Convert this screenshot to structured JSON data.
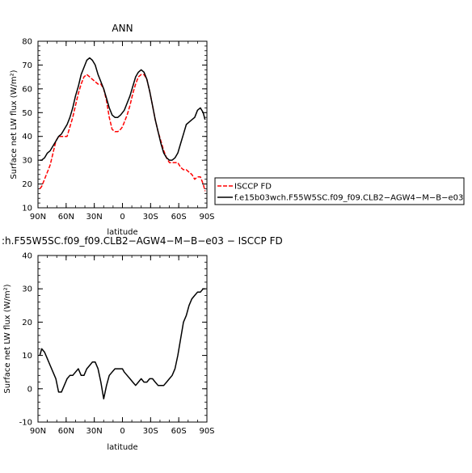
{
  "chart_data": [
    {
      "type": "line",
      "title": "ANN",
      "xlabel": "latitude",
      "ylabel": "Surface net LW flux (W/m²)",
      "xlim": [
        90,
        -90
      ],
      "ylim": [
        10,
        80
      ],
      "x_ticks": [
        90,
        60,
        30,
        0,
        -30,
        -60,
        -90
      ],
      "x_tick_labels": [
        "90N",
        "60N",
        "30N",
        "0",
        "30S",
        "60S",
        "90S"
      ],
      "y_ticks": [
        10,
        20,
        30,
        40,
        50,
        60,
        70,
        80
      ],
      "legend_position": "right",
      "series": [
        {
          "name": "ISCCP FD",
          "color": "#ff0000",
          "dashed": true,
          "x": [
            88,
            86,
            83,
            80,
            77,
            74,
            71,
            68,
            65,
            62,
            59,
            56,
            53,
            50,
            47,
            44,
            41,
            38,
            35,
            32,
            29,
            26,
            23,
            20,
            17,
            14,
            11,
            8,
            5,
            2,
            0,
            -2,
            -5,
            -8,
            -11,
            -14,
            -17,
            -20,
            -23,
            -26,
            -29,
            -32,
            -35,
            -38,
            -41,
            -44,
            -47,
            -50,
            -53,
            -56,
            -59,
            -62,
            -65,
            -68,
            -71,
            -74,
            -77,
            -80,
            -83,
            -86,
            -88
          ],
          "y": [
            18,
            19,
            22,
            25,
            28,
            33,
            38,
            40,
            40,
            40,
            40,
            44,
            48,
            53,
            58,
            62,
            65,
            66,
            65,
            64,
            63,
            62,
            62,
            60,
            55,
            48,
            43,
            42,
            42,
            43,
            44,
            46,
            49,
            53,
            58,
            62,
            65,
            66,
            66,
            64,
            59,
            53,
            47,
            42,
            38,
            34,
            31,
            29,
            29,
            29,
            29,
            27,
            26,
            26,
            25,
            24,
            22,
            23,
            23,
            20,
            17
          ]
        },
        {
          "name": "f.e15b03wch.F55W5SC.f09_f09.CLB2−AGW4−M−B−e03",
          "color": "#000000",
          "dashed": false,
          "x": [
            88,
            86,
            83,
            80,
            77,
            74,
            71,
            68,
            65,
            62,
            59,
            56,
            53,
            50,
            47,
            44,
            41,
            38,
            35,
            32,
            29,
            26,
            23,
            20,
            17,
            14,
            11,
            8,
            5,
            2,
            0,
            -2,
            -5,
            -8,
            -11,
            -14,
            -17,
            -20,
            -23,
            -26,
            -29,
            -32,
            -35,
            -38,
            -41,
            -44,
            -47,
            -50,
            -53,
            -56,
            -59,
            -62,
            -65,
            -68,
            -71,
            -74,
            -77,
            -80,
            -83,
            -86,
            -88
          ],
          "y": [
            30,
            30,
            31,
            33,
            34,
            36,
            38,
            40,
            41,
            43,
            45,
            48,
            52,
            57,
            61,
            66,
            69,
            72,
            73,
            72,
            70,
            66,
            63,
            60,
            56,
            52,
            49,
            48,
            48,
            49,
            50,
            51,
            54,
            57,
            61,
            65,
            67,
            68,
            67,
            64,
            59,
            53,
            47,
            42,
            37,
            33,
            31,
            30,
            30,
            31,
            33,
            37,
            41,
            45,
            46,
            47,
            48,
            51,
            52,
            50,
            47
          ]
        }
      ]
    },
    {
      "type": "line",
      "title": ":h.F55W5SC.f09_f09.CLB2−AGW4−M−B−e03 − ISCCP FD",
      "xlabel": "latitude",
      "ylabel": "Surface net LW flux (W/m²)",
      "xlim": [
        90,
        -90
      ],
      "ylim": [
        -10,
        40
      ],
      "x_ticks": [
        90,
        60,
        30,
        0,
        -30,
        -60,
        -90
      ],
      "x_tick_labels": [
        "90N",
        "60N",
        "30N",
        "0",
        "30S",
        "60S",
        "90S"
      ],
      "y_ticks": [
        -10,
        0,
        10,
        20,
        30,
        40
      ],
      "series": [
        {
          "color": "#000000",
          "dashed": false,
          "x": [
            88,
            86,
            83,
            80,
            77,
            74,
            71,
            68,
            65,
            62,
            59,
            56,
            53,
            50,
            47,
            44,
            41,
            38,
            35,
            32,
            29,
            26,
            23,
            20,
            17,
            14,
            11,
            8,
            5,
            2,
            0,
            -2,
            -5,
            -8,
            -11,
            -14,
            -17,
            -20,
            -23,
            -26,
            -29,
            -32,
            -35,
            -38,
            -41,
            -44,
            -47,
            -50,
            -53,
            -56,
            -59,
            -62,
            -65,
            -68,
            -71,
            -74,
            -77,
            -80,
            -83,
            -86,
            -88
          ],
          "y": [
            10,
            12,
            11,
            9,
            7,
            5,
            3,
            -1,
            -1,
            1,
            3,
            4,
            4,
            5,
            6,
            4,
            4,
            6,
            7,
            8,
            8,
            6,
            2,
            -3,
            1,
            4,
            5,
            6,
            6,
            6,
            6,
            5,
            4,
            3,
            2,
            1,
            2,
            3,
            2,
            2,
            3,
            3,
            2,
            1,
            1,
            1,
            2,
            3,
            4,
            6,
            10,
            15,
            20,
            22,
            25,
            27,
            28,
            29,
            29,
            30,
            30
          ]
        }
      ]
    }
  ]
}
